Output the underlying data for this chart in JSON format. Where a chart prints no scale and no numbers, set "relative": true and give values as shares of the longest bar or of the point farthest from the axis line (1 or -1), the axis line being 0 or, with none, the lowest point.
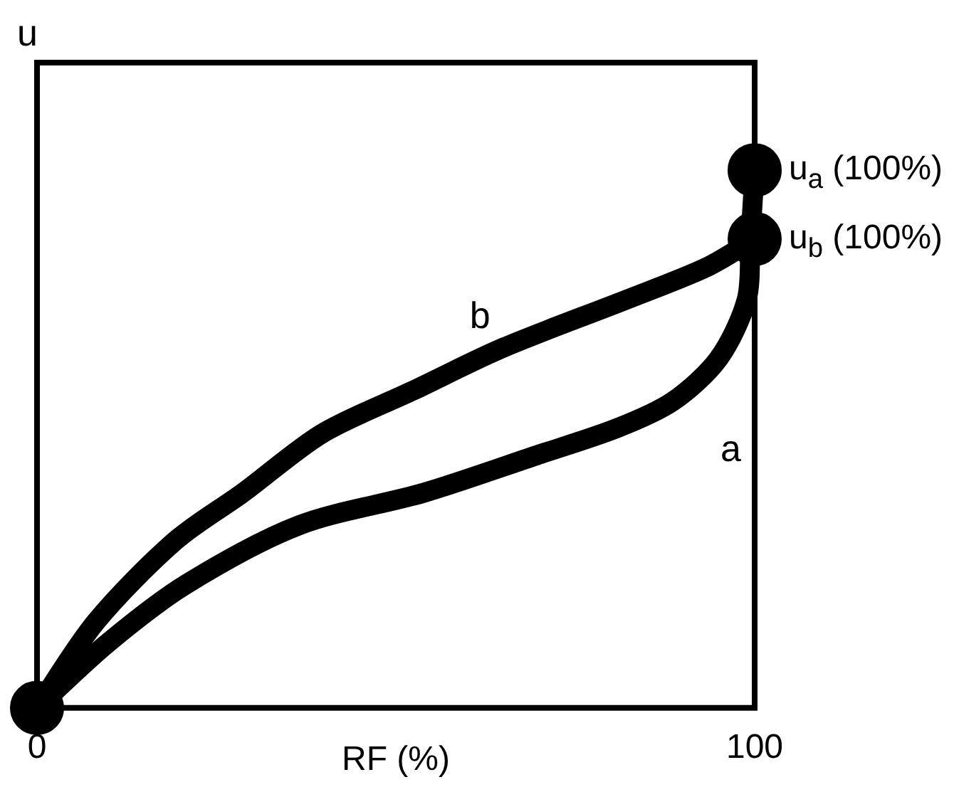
{
  "chart_data": {
    "type": "line",
    "xlabel": "RF (%)",
    "ylabel": "u",
    "relative": true,
    "xlim": [
      0,
      100
    ],
    "xticks": [
      0,
      100
    ],
    "legend": false,
    "line_style": "solid",
    "marker": "none",
    "series": [
      {
        "name": "a",
        "color": "#000000",
        "x": [
          0,
          9.8,
          20.8,
          36.6,
          53.9,
          69.7,
          80.8,
          88.6,
          95,
          98.9,
          99.4,
          100
        ],
        "values": [
          0,
          0.12,
          0.23,
          0.34,
          0.4,
          0.47,
          0.52,
          0.57,
          0.65,
          0.76,
          0.87,
          1
        ]
      },
      {
        "name": "b",
        "color": "#000000",
        "x": [
          0,
          8.2,
          19.2,
          28.7,
          39.7,
          52.4,
          65,
          82.3,
          93.4,
          100
        ],
        "values": [
          0,
          0.16,
          0.31,
          0.4,
          0.51,
          0.59,
          0.67,
          0.76,
          0.82,
          0.872
        ]
      },
      {
        "type": "scatter",
        "marker": "circle",
        "color": "#000000",
        "x": [
          0,
          100,
          100
        ],
        "values": [
          0,
          1,
          0.872
        ]
      }
    ],
    "annotations": [
      {
        "text": "u$_{a}$ (100%)",
        "x": 100,
        "y": 1
      },
      {
        "text": "u$_{b}$ (100%)",
        "x": 100,
        "y": 0.872
      }
    ]
  }
}
